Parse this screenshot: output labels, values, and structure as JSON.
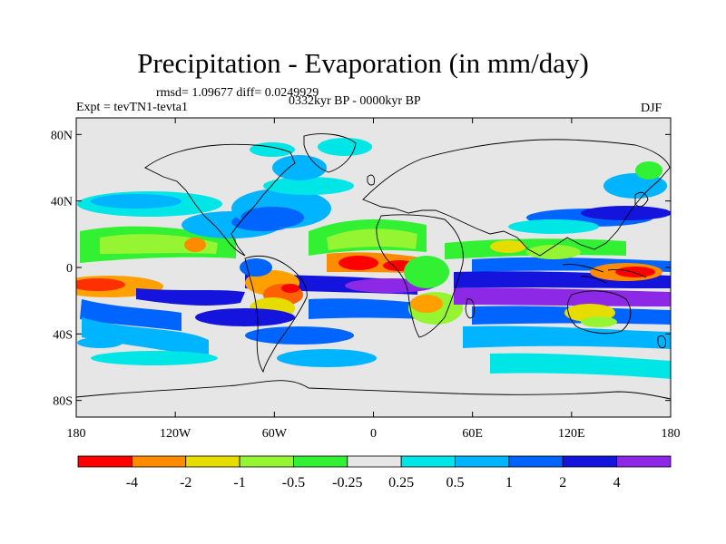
{
  "title": "Precipitation - Evaporation (in mm/day)",
  "stats": "rmsd= 1.09677  diff= 0.0249929",
  "experiment": "Expt = tevTN1-tevta1",
  "period": "0332kyr BP - 0000kyr BP",
  "season": "DJF",
  "map": {
    "lat_labels": [
      "80N",
      "40N",
      "0",
      "40S",
      "80S"
    ],
    "lat_values": [
      80,
      40,
      0,
      -40,
      -80
    ],
    "lon_labels": [
      "180",
      "120W",
      "60W",
      "0",
      "60E",
      "120E",
      "180"
    ],
    "lon_values": [
      -180,
      -120,
      -60,
      0,
      60,
      120,
      180
    ],
    "background_color": "#e6e6e6"
  },
  "colorbar": {
    "colors": [
      "#ff0000",
      "#ff8c00",
      "#e6dc00",
      "#96f532",
      "#32f032",
      "#e6e6e6",
      "#00e6e6",
      "#00b4ff",
      "#0064ff",
      "#1414dc",
      "#8c28e6"
    ],
    "labels": [
      "-4",
      "-2",
      "-1",
      "-0.5",
      "-0.25",
      "0.25",
      "0.5",
      "1",
      "2",
      "4"
    ]
  },
  "chart_data": {
    "type": "heatmap",
    "title": "Precipitation - Evaporation (in mm/day)",
    "levels": [
      -4,
      -2,
      -1,
      -0.5,
      -0.25,
      0.25,
      0.5,
      1,
      2,
      4
    ],
    "units": "mm/day",
    "xrange": [
      -180,
      180
    ],
    "yrange": [
      -90,
      90
    ]
  }
}
